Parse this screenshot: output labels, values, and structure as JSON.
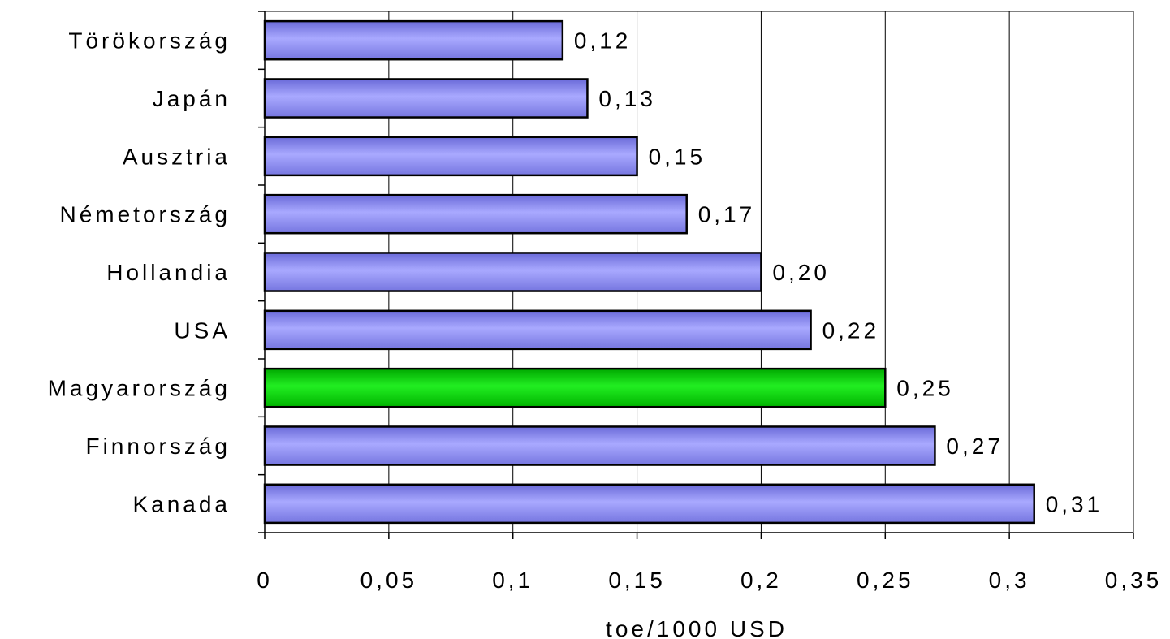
{
  "chart_data": {
    "type": "bar",
    "orientation": "horizontal",
    "categories": [
      "Törökország",
      "Japán",
      "Ausztria",
      "Németország",
      "Hollandia",
      "USA",
      "Magyarország",
      "Finnország",
      "Kanada"
    ],
    "values": [
      0.12,
      0.13,
      0.15,
      0.17,
      0.2,
      0.22,
      0.25,
      0.27,
      0.31
    ],
    "value_labels": [
      "0,12",
      "0,13",
      "0,15",
      "0,17",
      "0,20",
      "0,22",
      "0,25",
      "0,27",
      "0,31"
    ],
    "highlight_category": "Magyarország",
    "xlabel": "toe/1000 USD",
    "xlim": [
      0,
      0.35
    ],
    "x_ticks": [
      0,
      0.05,
      0.1,
      0.15,
      0.2,
      0.25,
      0.3,
      0.35
    ],
    "x_tick_labels": [
      "0",
      "0,05",
      "0,1",
      "0,15",
      "0,2",
      "0,25",
      "0,3",
      "0,35"
    ],
    "grid": "vertical",
    "colors": {
      "bar": "#9999ff",
      "highlight": "#00cc00"
    }
  }
}
